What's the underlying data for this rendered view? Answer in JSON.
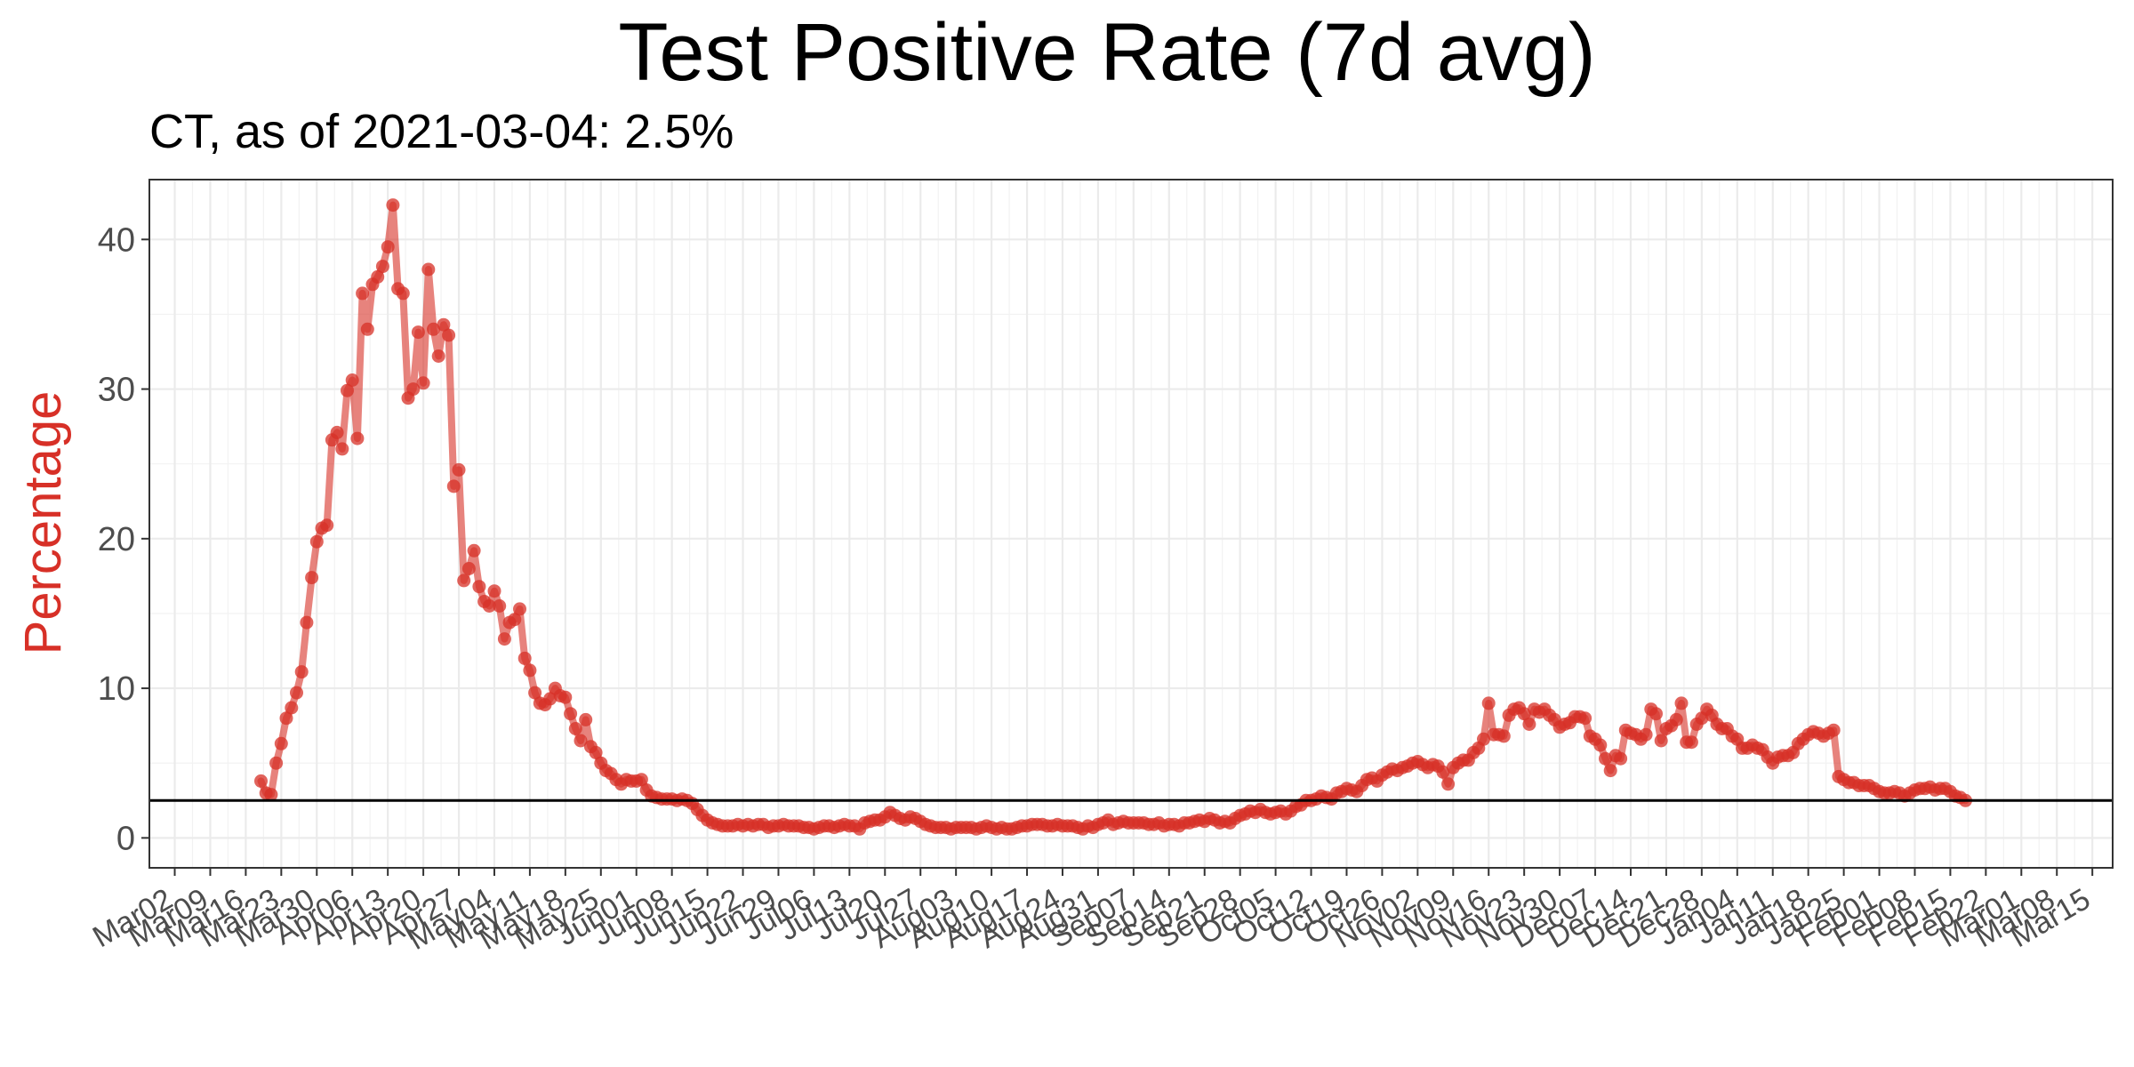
{
  "chart_data": {
    "type": "line",
    "title": "Test Positive Rate (7d avg)",
    "subtitle": "CT, as of 2021-03-04:  2.5%",
    "xlabel": "",
    "ylabel": "Percentage",
    "ylim": [
      -2,
      44
    ],
    "y_ticks": [
      0,
      10,
      20,
      30,
      40
    ],
    "y_tick_labels": [
      "0",
      "10",
      "20",
      "30",
      "40"
    ],
    "x_axis": {
      "start_date": "2020-02-26",
      "end_date": "2021-03-19",
      "tick_start": "2020-03-02",
      "tick_interval_days": 7,
      "tick_labels": [
        "Mar02",
        "Mar09",
        "Mar16",
        "Mar23",
        "Mar30",
        "Apr06",
        "Apr13",
        "Apr20",
        "Apr27",
        "May04",
        "May11",
        "May18",
        "May25",
        "Jun01",
        "Jun08",
        "Jun15",
        "Jun22",
        "Jun29",
        "Jul06",
        "Jul13",
        "Jul20",
        "Jul27",
        "Aug03",
        "Aug10",
        "Aug17",
        "Aug24",
        "Aug31",
        "Sep07",
        "Sep14",
        "Sep21",
        "Sep28",
        "Oct05",
        "Oct12",
        "Oct19",
        "Oct26",
        "Nov02",
        "Nov09",
        "Nov16",
        "Nov23",
        "Nov30",
        "Dec07",
        "Dec14",
        "Dec21",
        "Dec28",
        "Jan04",
        "Jan11",
        "Jan18",
        "Jan25",
        "Feb01",
        "Feb08",
        "Feb15",
        "Feb22",
        "Mar01",
        "Mar08",
        "Mar15"
      ]
    },
    "reference_line": {
      "value": 2.5,
      "label": "2.5%",
      "color": "#000000"
    },
    "series": [
      {
        "name": "Test Positive Rate (7d avg)",
        "color": "#d73027",
        "start_date": "2020-03-19",
        "values": [
          3.8,
          3.0,
          2.9,
          5.0,
          6.3,
          8.0,
          8.7,
          9.7,
          11.1,
          14.4,
          17.4,
          19.8,
          20.7,
          20.9,
          26.6,
          27.1,
          26.0,
          29.9,
          30.6,
          26.7,
          36.4,
          34.0,
          37.0,
          37.5,
          38.2,
          39.5,
          42.3,
          36.7,
          36.4,
          29.4,
          30.0,
          33.8,
          30.4,
          38.0,
          34.0,
          32.2,
          34.3,
          33.6,
          23.5,
          24.6,
          17.2,
          18.0,
          19.2,
          16.8,
          15.8,
          15.5,
          16.5,
          15.5,
          13.3,
          14.4,
          14.6,
          15.3,
          12.0,
          11.2,
          9.7,
          9.0,
          8.9,
          9.3,
          10.0,
          9.5,
          9.4,
          8.3,
          7.3,
          6.5,
          7.9,
          6.1,
          5.7,
          5.0,
          4.5,
          4.3,
          3.9,
          3.6,
          3.9,
          3.8,
          3.8,
          3.9,
          3.2,
          2.8,
          2.7,
          2.6,
          2.6,
          2.6,
          2.5,
          2.6,
          2.5,
          2.3,
          1.9,
          1.5,
          1.2,
          1.0,
          0.9,
          0.8,
          0.8,
          0.8,
          0.9,
          0.8,
          0.9,
          0.8,
          0.9,
          0.9,
          0.7,
          0.8,
          0.8,
          0.9,
          0.8,
          0.8,
          0.8,
          0.7,
          0.7,
          0.6,
          0.7,
          0.8,
          0.8,
          0.7,
          0.8,
          0.9,
          0.8,
          0.8,
          0.6,
          1.0,
          1.1,
          1.2,
          1.2,
          1.4,
          1.7,
          1.5,
          1.3,
          1.2,
          1.4,
          1.3,
          1.1,
          0.9,
          0.8,
          0.7,
          0.7,
          0.7,
          0.6,
          0.7,
          0.7,
          0.7,
          0.7,
          0.6,
          0.7,
          0.8,
          0.7,
          0.6,
          0.7,
          0.6,
          0.6,
          0.7,
          0.8,
          0.8,
          0.9,
          0.9,
          0.9,
          0.8,
          0.8,
          0.9,
          0.8,
          0.8,
          0.8,
          0.7,
          0.6,
          0.8,
          0.7,
          0.9,
          1.0,
          1.2,
          0.9,
          1.0,
          1.1,
          1.0,
          1.0,
          1.0,
          1.0,
          0.9,
          0.9,
          1.0,
          0.8,
          0.9,
          0.9,
          0.8,
          1.0,
          1.0,
          1.1,
          1.2,
          1.1,
          1.3,
          1.2,
          1.0,
          1.1,
          1.0,
          1.3,
          1.5,
          1.6,
          1.8,
          1.7,
          1.9,
          1.7,
          1.6,
          1.7,
          1.8,
          1.6,
          1.8,
          2.1,
          2.2,
          2.5,
          2.5,
          2.6,
          2.8,
          2.7,
          2.6,
          3.0,
          3.1,
          3.3,
          3.2,
          3.1,
          3.5,
          3.9,
          4.0,
          3.8,
          4.2,
          4.4,
          4.6,
          4.5,
          4.7,
          4.8,
          5.0,
          5.1,
          4.9,
          4.7,
          4.9,
          4.8,
          4.4,
          3.6,
          4.7,
          5.0,
          5.2,
          5.2,
          5.7,
          6.0,
          6.6,
          9.0,
          6.9,
          6.9,
          6.8,
          8.2,
          8.6,
          8.7,
          8.3,
          7.6,
          8.6,
          8.4,
          8.6,
          8.2,
          7.9,
          7.4,
          7.6,
          7.7,
          8.1,
          8.1,
          8.0,
          6.8,
          6.6,
          6.2,
          5.3,
          4.5,
          5.5,
          5.3,
          7.2,
          7.0,
          6.9,
          6.6,
          6.9,
          8.6,
          8.3,
          6.5,
          7.3,
          7.5,
          7.9,
          9.0,
          6.4,
          6.4,
          7.6,
          8.0,
          8.6,
          8.2,
          7.6,
          7.3,
          7.3,
          6.8,
          6.6,
          6.0,
          6.0,
          6.2,
          6.0,
          5.9,
          5.4,
          5.0,
          5.4,
          5.5,
          5.5,
          5.7,
          6.3,
          6.6,
          6.9,
          7.1,
          7.0,
          6.8,
          7.0,
          7.2,
          4.1,
          3.9,
          3.7,
          3.7,
          3.5,
          3.5,
          3.5,
          3.3,
          3.1,
          3.0,
          3.0,
          3.1,
          3.0,
          2.8,
          3.0,
          3.2,
          3.3,
          3.3,
          3.4,
          3.2,
          3.3,
          3.3,
          3.1,
          2.8,
          2.7,
          2.5
        ]
      }
    ]
  }
}
